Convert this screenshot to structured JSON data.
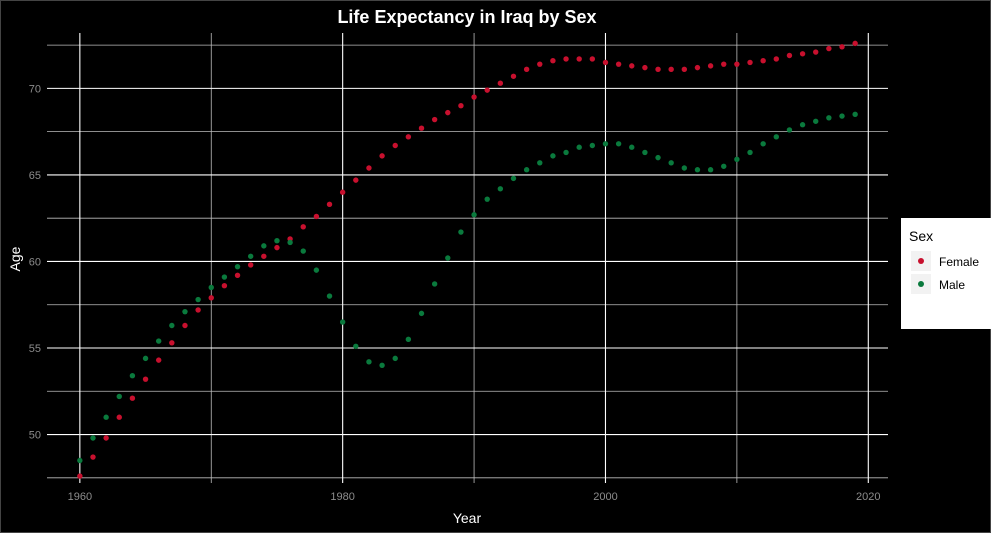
{
  "chart_data": {
    "type": "scatter",
    "title": "Life Expectancy in Iraq by Sex",
    "xlabel": "Year",
    "ylabel": "Age",
    "xlim": [
      1957.5,
      2021.5
    ],
    "ylim": [
      47.2,
      73.2
    ],
    "x_ticks": [
      1960,
      1980,
      2000,
      2020
    ],
    "y_ticks": [
      50,
      55,
      60,
      65,
      70
    ],
    "grid": true,
    "legend": {
      "title": "Sex",
      "position": "right"
    },
    "x": [
      1960,
      1961,
      1962,
      1963,
      1964,
      1965,
      1966,
      1967,
      1968,
      1969,
      1970,
      1971,
      1972,
      1973,
      1974,
      1975,
      1976,
      1977,
      1978,
      1979,
      1980,
      1981,
      1982,
      1983,
      1984,
      1985,
      1986,
      1987,
      1988,
      1989,
      1990,
      1991,
      1992,
      1993,
      1994,
      1995,
      1996,
      1997,
      1998,
      1999,
      2000,
      2001,
      2002,
      2003,
      2004,
      2005,
      2006,
      2007,
      2008,
      2009,
      2010,
      2011,
      2012,
      2013,
      2014,
      2015,
      2016,
      2017,
      2018,
      2019
    ],
    "series": [
      {
        "name": "Female",
        "color": "#c8102e",
        "values": [
          47.6,
          48.7,
          49.8,
          51.0,
          52.1,
          53.2,
          54.3,
          55.3,
          56.3,
          57.2,
          57.9,
          58.6,
          59.2,
          59.8,
          60.3,
          60.8,
          61.3,
          62.0,
          62.6,
          63.3,
          64.0,
          64.7,
          65.4,
          66.1,
          66.7,
          67.2,
          67.7,
          68.2,
          68.6,
          69.0,
          69.5,
          69.9,
          70.3,
          70.7,
          71.1,
          71.4,
          71.6,
          71.7,
          71.7,
          71.7,
          71.5,
          71.4,
          71.3,
          71.2,
          71.1,
          71.1,
          71.1,
          71.2,
          71.3,
          71.4,
          71.4,
          71.5,
          71.6,
          71.7,
          71.9,
          72.0,
          72.1,
          72.3,
          72.4,
          72.6
        ]
      },
      {
        "name": "Male",
        "color": "#0a7a3d",
        "values": [
          48.5,
          49.8,
          51.0,
          52.2,
          53.4,
          54.4,
          55.4,
          56.3,
          57.1,
          57.8,
          58.5,
          59.1,
          59.7,
          60.3,
          60.9,
          61.2,
          61.1,
          60.6,
          59.5,
          58.0,
          56.5,
          55.1,
          54.2,
          54.0,
          54.4,
          55.5,
          57.0,
          58.7,
          60.2,
          61.7,
          62.7,
          63.6,
          64.2,
          64.8,
          65.3,
          65.7,
          66.1,
          66.3,
          66.6,
          66.7,
          66.8,
          66.8,
          66.6,
          66.3,
          66.0,
          65.7,
          65.4,
          65.3,
          65.3,
          65.5,
          65.9,
          66.3,
          66.8,
          67.2,
          67.6,
          67.9,
          68.1,
          68.3,
          68.4,
          68.5
        ]
      }
    ]
  }
}
